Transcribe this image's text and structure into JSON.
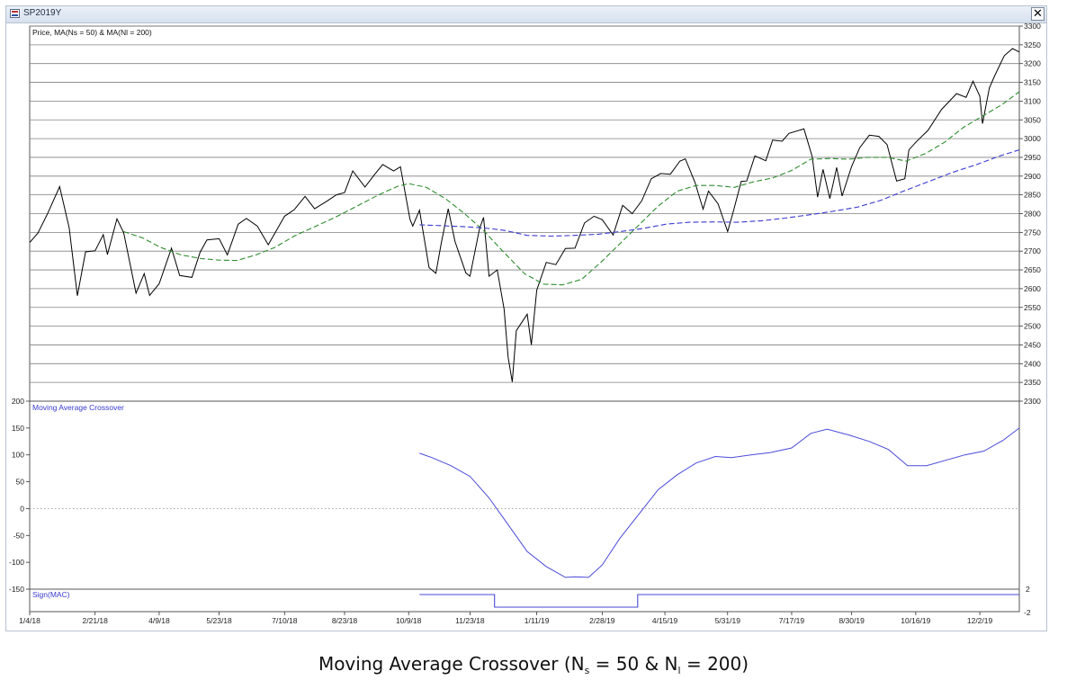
{
  "window": {
    "title": "SP2019Y",
    "close_symbol": "✕"
  },
  "caption": {
    "text": "Moving Average Crossover (N",
    "sub_s": "s",
    "mid": " = 50 & N",
    "sub_l": "l",
    "end": " = 200)"
  },
  "colors": {
    "price": "#000000",
    "ma_short": "#2e8b2e",
    "ma_long": "#3a3ad0",
    "mac": "#4a4ad8",
    "sign": "#4a4ad8",
    "grid": "#808080",
    "zero_line": "#999999"
  },
  "chart_data": [
    {
      "type": "line",
      "title": "Price, MA(Ns = 50) & MA(Nl = 200)",
      "x_tick_labels": [
        "1/4/18",
        "2/21/18",
        "4/9/18",
        "5/23/18",
        "7/10/18",
        "8/23/18",
        "10/9/18",
        "11/23/18",
        "1/11/19",
        "2/28/19",
        "4/15/19",
        "5/31/19",
        "7/17/19",
        "8/30/19",
        "10/16/19",
        "12/2/19"
      ],
      "y_ticks": [
        2300,
        2350,
        2400,
        2450,
        2500,
        2550,
        2600,
        2650,
        2700,
        2750,
        2800,
        2850,
        2900,
        2950,
        3000,
        3050,
        3100,
        3150,
        3200,
        3250,
        3300
      ],
      "ylim": [
        2300,
        3300
      ],
      "xlim": [
        "1/4/18",
        "12/31/19"
      ],
      "grid": "horizontal",
      "series": [
        {
          "name": "Price",
          "style": "solid",
          "points": [
            [
              "1/4/18",
              2723
            ],
            [
              "1/10/18",
              2748
            ],
            [
              "1/17/18",
              2799
            ],
            [
              "1/26/18",
              2872
            ],
            [
              "2/2/18",
              2762
            ],
            [
              "2/8/18",
              2581
            ],
            [
              "2/14/18",
              2698
            ],
            [
              "2/21/18",
              2701
            ],
            [
              "2/27/18",
              2744
            ],
            [
              "3/2/18",
              2691
            ],
            [
              "3/9/18",
              2786
            ],
            [
              "3/14/18",
              2749
            ],
            [
              "3/23/18",
              2588
            ],
            [
              "3/29/18",
              2640
            ],
            [
              "4/2/18",
              2582
            ],
            [
              "4/9/18",
              2613
            ],
            [
              "4/18/18",
              2708
            ],
            [
              "4/24/18",
              2635
            ],
            [
              "5/3/18",
              2630
            ],
            [
              "5/9/18",
              2697
            ],
            [
              "5/14/18",
              2730
            ],
            [
              "5/23/18",
              2733
            ],
            [
              "5/29/18",
              2690
            ],
            [
              "6/6/18",
              2772
            ],
            [
              "6/12/18",
              2787
            ],
            [
              "6/20/18",
              2767
            ],
            [
              "6/28/18",
              2717
            ],
            [
              "7/10/18",
              2793
            ],
            [
              "7/17/18",
              2810
            ],
            [
              "7/25/18",
              2846
            ],
            [
              "8/1/18",
              2813
            ],
            [
              "8/10/18",
              2833
            ],
            [
              "8/17/18",
              2850
            ],
            [
              "8/23/18",
              2856
            ],
            [
              "8/29/18",
              2914
            ],
            [
              "9/7/18",
              2871
            ],
            [
              "9/14/18",
              2904
            ],
            [
              "9/20/18",
              2931
            ],
            [
              "9/28/18",
              2914
            ],
            [
              "10/3/18",
              2925
            ],
            [
              "10/10/18",
              2785
            ],
            [
              "10/12/18",
              2767
            ],
            [
              "10/17/18",
              2809
            ],
            [
              "10/24/18",
              2656
            ],
            [
              "10/29/18",
              2641
            ],
            [
              "11/2/18",
              2723
            ],
            [
              "11/7/18",
              2813
            ],
            [
              "11/12/18",
              2726
            ],
            [
              "11/20/18",
              2642
            ],
            [
              "11/23/18",
              2633
            ],
            [
              "11/30/18",
              2760
            ],
            [
              "12/3/18",
              2790
            ],
            [
              "12/7/18",
              2633
            ],
            [
              "12/13/18",
              2650
            ],
            [
              "12/18/18",
              2546
            ],
            [
              "12/21/18",
              2417
            ],
            [
              "12/24/18",
              2351
            ],
            [
              "12/27/18",
              2488
            ],
            [
              "1/4/19",
              2532
            ],
            [
              "1/7/19",
              2450
            ],
            [
              "1/11/19",
              2596
            ],
            [
              "1/18/19",
              2670
            ],
            [
              "1/25/19",
              2664
            ],
            [
              "2/1/19",
              2707
            ],
            [
              "2/8/19",
              2708
            ],
            [
              "2/15/19",
              2775
            ],
            [
              "2/22/19",
              2793
            ],
            [
              "2/28/19",
              2784
            ],
            [
              "3/8/19",
              2743
            ],
            [
              "3/15/19",
              2822
            ],
            [
              "3/22/19",
              2800
            ],
            [
              "3/29/19",
              2834
            ],
            [
              "4/5/19",
              2893
            ],
            [
              "4/12/19",
              2907
            ],
            [
              "4/19/19",
              2905
            ],
            [
              "4/26/19",
              2940
            ],
            [
              "4/30/19",
              2946
            ],
            [
              "5/7/19",
              2884
            ],
            [
              "5/13/19",
              2812
            ],
            [
              "5/17/19",
              2860
            ],
            [
              "5/24/19",
              2826
            ],
            [
              "5/31/19",
              2752
            ],
            [
              "6/4/19",
              2803
            ],
            [
              "6/10/19",
              2886
            ],
            [
              "6/14/19",
              2887
            ],
            [
              "6/20/19",
              2954
            ],
            [
              "6/28/19",
              2941
            ],
            [
              "7/3/19",
              2996
            ],
            [
              "7/10/19",
              2993
            ],
            [
              "7/15/19",
              3014
            ],
            [
              "7/26/19",
              3026
            ],
            [
              "8/1/19",
              2953
            ],
            [
              "8/5/19",
              2844
            ],
            [
              "8/9/19",
              2918
            ],
            [
              "8/14/19",
              2840
            ],
            [
              "8/19/19",
              2923
            ],
            [
              "8/23/19",
              2847
            ],
            [
              "8/30/19",
              2926
            ],
            [
              "9/5/19",
              2976
            ],
            [
              "9/12/19",
              3009
            ],
            [
              "9/19/19",
              3006
            ],
            [
              "9/25/19",
              2984
            ],
            [
              "10/2/19",
              2887
            ],
            [
              "10/8/19",
              2893
            ],
            [
              "10/11/19",
              2970
            ],
            [
              "10/16/19",
              2990
            ],
            [
              "10/25/19",
              3022
            ],
            [
              "11/4/19",
              3078
            ],
            [
              "11/15/19",
              3120
            ],
            [
              "11/22/19",
              3110
            ],
            [
              "11/27/19",
              3153
            ],
            [
              "12/2/19",
              3113
            ],
            [
              "12/4/19",
              3040
            ],
            [
              "12/9/19",
              3135
            ],
            [
              "12/13/19",
              3168
            ],
            [
              "12/20/19",
              3221
            ],
            [
              "12/26/19",
              3240
            ],
            [
              "12/31/19",
              3231
            ]
          ]
        },
        {
          "name": "MA(Ns = 50)",
          "style": "dashed",
          "points": [
            [
              "3/14/18",
              2752
            ],
            [
              "3/28/18",
              2735
            ],
            [
              "4/10/18",
              2710
            ],
            [
              "4/25/18",
              2690
            ],
            [
              "5/10/18",
              2680
            ],
            [
              "5/23/18",
              2676
            ],
            [
              "6/5/18",
              2675
            ],
            [
              "6/19/18",
              2690
            ],
            [
              "7/3/18",
              2710
            ],
            [
              "7/17/18",
              2740
            ],
            [
              "8/1/18",
              2765
            ],
            [
              "8/16/18",
              2790
            ],
            [
              "9/1/18",
              2820
            ],
            [
              "9/17/18",
              2850
            ],
            [
              "10/1/18",
              2873
            ],
            [
              "10/9/18",
              2880
            ],
            [
              "10/22/18",
              2870
            ],
            [
              "11/5/18",
              2840
            ],
            [
              "11/19/18",
              2800
            ],
            [
              "12/3/18",
              2755
            ],
            [
              "12/17/18",
              2700
            ],
            [
              "1/2/19",
              2640
            ],
            [
              "1/16/19",
              2612
            ],
            [
              "1/30/19",
              2610
            ],
            [
              "2/13/19",
              2625
            ],
            [
              "2/27/19",
              2670
            ],
            [
              "3/13/19",
              2720
            ],
            [
              "3/27/19",
              2770
            ],
            [
              "4/10/19",
              2820
            ],
            [
              "4/24/19",
              2860
            ],
            [
              "5/8/19",
              2875
            ],
            [
              "5/22/19",
              2875
            ],
            [
              "6/5/19",
              2870
            ],
            [
              "6/19/19",
              2885
            ],
            [
              "7/3/19",
              2895
            ],
            [
              "7/17/19",
              2915
            ],
            [
              "7/31/19",
              2945
            ],
            [
              "8/14/19",
              2947
            ],
            [
              "8/28/19",
              2945
            ],
            [
              "9/11/19",
              2950
            ],
            [
              "9/25/19",
              2950
            ],
            [
              "10/9/19",
              2940
            ],
            [
              "10/23/19",
              2960
            ],
            [
              "11/6/19",
              2990
            ],
            [
              "11/20/19",
              3030
            ],
            [
              "12/4/19",
              3060
            ],
            [
              "12/18/19",
              3090
            ],
            [
              "12/31/19",
              3125
            ]
          ]
        },
        {
          "name": "MA(Nl = 200)",
          "style": "dashed",
          "points": [
            [
              "10/17/18",
              2770
            ],
            [
              "11/1/18",
              2768
            ],
            [
              "11/19/18",
              2765
            ],
            [
              "12/3/18",
              2762
            ],
            [
              "12/19/18",
              2755
            ],
            [
              "1/4/19",
              2742
            ],
            [
              "1/22/19",
              2740
            ],
            [
              "2/8/19",
              2742
            ],
            [
              "2/25/19",
              2745
            ],
            [
              "3/13/19",
              2752
            ],
            [
              "3/29/19",
              2760
            ],
            [
              "4/16/19",
              2772
            ],
            [
              "5/3/19",
              2777
            ],
            [
              "5/21/19",
              2778
            ],
            [
              "6/7/19",
              2777
            ],
            [
              "6/25/19",
              2781
            ],
            [
              "7/12/19",
              2788
            ],
            [
              "7/30/19",
              2797
            ],
            [
              "8/16/19",
              2806
            ],
            [
              "9/3/19",
              2817
            ],
            [
              "9/20/19",
              2835
            ],
            [
              "10/7/19",
              2860
            ],
            [
              "10/25/19",
              2885
            ],
            [
              "11/12/19",
              2910
            ],
            [
              "11/29/19",
              2930
            ],
            [
              "12/16/19",
              2953
            ],
            [
              "12/31/19",
              2970
            ]
          ]
        }
      ]
    },
    {
      "type": "line",
      "title": "Moving Average Crossover",
      "y_ticks": [
        -150,
        -100,
        -50,
        0,
        50,
        100,
        150,
        200
      ],
      "ylim": [
        -150,
        200
      ],
      "zero_line": "dotted",
      "series": [
        {
          "name": "Moving Average Crossover",
          "style": "solid",
          "points": [
            [
              "10/17/18",
              103
            ],
            [
              "10/26/18",
              95
            ],
            [
              "11/9/18",
              80
            ],
            [
              "11/23/18",
              60
            ],
            [
              "12/7/18",
              20
            ],
            [
              "12/21/18",
              -30
            ],
            [
              "1/4/19",
              -80
            ],
            [
              "1/18/19",
              -108
            ],
            [
              "2/1/19",
              -128
            ],
            [
              "2/8/19",
              -127
            ],
            [
              "2/18/19",
              -128
            ],
            [
              "2/28/19",
              -105
            ],
            [
              "3/13/19",
              -55
            ],
            [
              "3/27/19",
              -10
            ],
            [
              "4/10/19",
              35
            ],
            [
              "4/24/19",
              63
            ],
            [
              "5/8/19",
              85
            ],
            [
              "5/22/19",
              97
            ],
            [
              "6/3/19",
              95
            ],
            [
              "6/17/19",
              100
            ],
            [
              "7/1/19",
              104
            ],
            [
              "7/17/19",
              113
            ],
            [
              "7/31/19",
              140
            ],
            [
              "8/12/19",
              148
            ],
            [
              "8/28/19",
              137
            ],
            [
              "9/12/19",
              125
            ],
            [
              "9/26/19",
              110
            ],
            [
              "10/10/19",
              80
            ],
            [
              "10/24/19",
              80
            ],
            [
              "11/7/19",
              90
            ],
            [
              "11/21/19",
              100
            ],
            [
              "12/5/19",
              107
            ],
            [
              "12/19/19",
              127
            ],
            [
              "12/31/19",
              150
            ]
          ]
        }
      ]
    },
    {
      "type": "line",
      "title": "Sign(MAC)",
      "y_ticks": [
        -2,
        2
      ],
      "ylim": [
        -2,
        2
      ],
      "series": [
        {
          "name": "Sign(MAC)",
          "style": "step",
          "points": [
            [
              "10/17/18",
              1
            ],
            [
              "12/11/18",
              1
            ],
            [
              "12/11/18",
              -1
            ],
            [
              "3/26/19",
              -1
            ],
            [
              "3/26/19",
              1
            ],
            [
              "12/31/19",
              1
            ]
          ]
        }
      ]
    }
  ]
}
